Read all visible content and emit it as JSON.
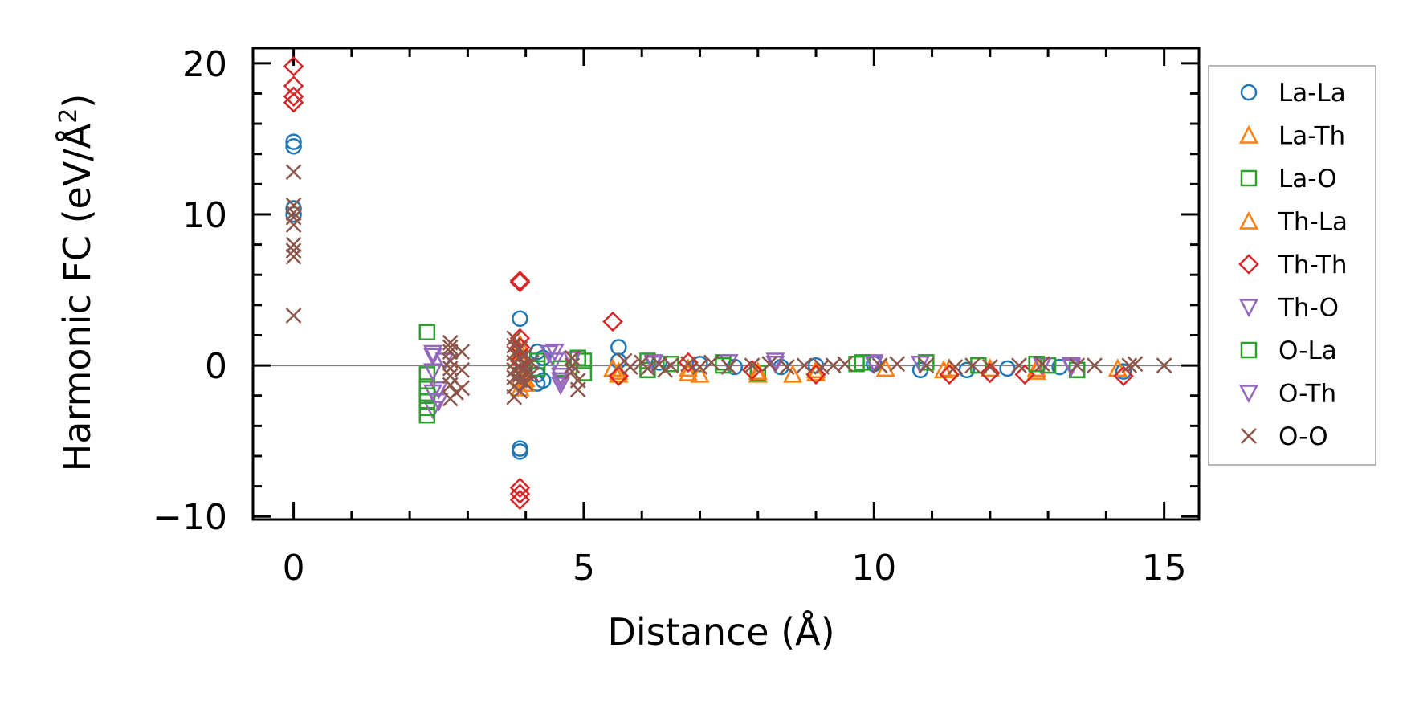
{
  "chart_data": {
    "type": "scatter",
    "xlabel": "Distance (Å)",
    "ylabel": "Harmonic FC (eV/Å²)",
    "ylabel_main": "Harmonic FC (eV/Å",
    "ylabel_sup": "2",
    "ylabel_end": ")",
    "xlim": [
      -0.7,
      15.6
    ],
    "ylim": [
      -10.2,
      21
    ],
    "xticks": [
      0,
      5,
      10,
      15
    ],
    "xtick_labels": [
      "0",
      "5",
      "10",
      "15"
    ],
    "yticks": [
      -10,
      0,
      10,
      20
    ],
    "ytick_labels": [
      "−10",
      "0",
      "10",
      "20"
    ],
    "x_minor_step": 1,
    "y_minor_step": 2,
    "reference_line_y": 0,
    "legend_position": "right, outside",
    "series": [
      {
        "name": "La-La",
        "marker": "circle",
        "color": "#1f77b4",
        "points": [
          [
            0,
            14.8
          ],
          [
            0,
            14.5
          ],
          [
            0,
            10.4
          ],
          [
            0,
            10.0
          ],
          [
            3.9,
            3.1
          ],
          [
            3.9,
            -5.5
          ],
          [
            3.9,
            -5.7
          ],
          [
            3.9,
            0.4
          ],
          [
            3.9,
            -0.5
          ],
          [
            4.2,
            0.9
          ],
          [
            4.2,
            -0.6
          ],
          [
            4.3,
            0.5
          ],
          [
            4.3,
            -1.0
          ],
          [
            4.2,
            -1.2
          ],
          [
            5.6,
            1.2
          ],
          [
            5.6,
            0.3
          ],
          [
            6.3,
            0.2
          ],
          [
            7.0,
            0.1
          ],
          [
            7.6,
            -0.1
          ],
          [
            8.4,
            -0.1
          ],
          [
            9.0,
            0.0
          ],
          [
            10.0,
            0.1
          ],
          [
            10.8,
            -0.3
          ],
          [
            11.6,
            -0.3
          ],
          [
            12.3,
            -0.2
          ],
          [
            13.2,
            -0.1
          ],
          [
            14.3,
            -0.4
          ]
        ]
      },
      {
        "name": "La-Th",
        "marker": "triangle-up",
        "color": "#ff7f0e",
        "points": [
          [
            3.9,
            1.4
          ],
          [
            3.9,
            -1.5
          ],
          [
            3.9,
            0.5
          ],
          [
            4.0,
            -0.9
          ],
          [
            5.6,
            -0.6
          ],
          [
            5.5,
            -0.2
          ],
          [
            6.8,
            -0.5
          ],
          [
            7.0,
            -0.6
          ],
          [
            8.0,
            -0.6
          ],
          [
            8.6,
            -0.6
          ],
          [
            9.0,
            -0.3
          ],
          [
            10.2,
            -0.2
          ],
          [
            11.2,
            -0.3
          ],
          [
            12.0,
            -0.2
          ],
          [
            12.8,
            -0.4
          ],
          [
            14.2,
            -0.2
          ]
        ]
      },
      {
        "name": "La-O",
        "marker": "square",
        "color": "#2ca02c",
        "points": [
          [
            2.3,
            2.2
          ],
          [
            2.3,
            -3.3
          ],
          [
            2.3,
            -2.4
          ],
          [
            2.3,
            -1.4
          ],
          [
            2.3,
            -0.6
          ],
          [
            4.2,
            0.3
          ],
          [
            4.6,
            -0.2
          ],
          [
            5.0,
            0.3
          ],
          [
            5.0,
            -0.5
          ],
          [
            6.1,
            0.3
          ],
          [
            6.5,
            0.1
          ],
          [
            7.4,
            0.2
          ],
          [
            8.0,
            -0.5
          ],
          [
            9.7,
            0.1
          ],
          [
            10.9,
            0.2
          ],
          [
            11.8,
            0.0
          ],
          [
            13.0,
            0.0
          ],
          [
            13.5,
            -0.3
          ]
        ]
      },
      {
        "name": "Th-La",
        "marker": "triangle-up",
        "color": "#ff7f0e",
        "points": [
          [
            3.9,
            1.0
          ],
          [
            3.9,
            -0.8
          ],
          [
            4.0,
            -1.2
          ],
          [
            5.6,
            -0.4
          ],
          [
            6.8,
            -0.2
          ],
          [
            8.0,
            -0.4
          ],
          [
            9.0,
            -0.5
          ],
          [
            11.3,
            -0.2
          ],
          [
            12.8,
            -0.2
          ]
        ]
      },
      {
        "name": "Th-Th",
        "marker": "diamond",
        "color": "#d62728",
        "points": [
          [
            0,
            19.8
          ],
          [
            0,
            18.5
          ],
          [
            0,
            17.8
          ],
          [
            0,
            17.4
          ],
          [
            3.9,
            5.6
          ],
          [
            3.9,
            5.5
          ],
          [
            3.9,
            1.8
          ],
          [
            3.9,
            1.2
          ],
          [
            3.9,
            -8.1
          ],
          [
            3.9,
            -8.5
          ],
          [
            3.9,
            -8.9
          ],
          [
            3.9,
            0.3
          ],
          [
            3.9,
            -0.5
          ],
          [
            5.5,
            2.9
          ],
          [
            5.6,
            -0.7
          ],
          [
            6.8,
            0.2
          ],
          [
            7.9,
            -0.3
          ],
          [
            9.0,
            -0.6
          ],
          [
            11.3,
            -0.6
          ],
          [
            12.0,
            -0.5
          ],
          [
            12.6,
            -0.6
          ],
          [
            14.3,
            -0.7
          ]
        ]
      },
      {
        "name": "Th-O",
        "marker": "triangle-down",
        "color": "#9467bd",
        "points": [
          [
            2.4,
            0.6
          ],
          [
            2.4,
            -0.4
          ],
          [
            2.4,
            -1.8
          ],
          [
            2.4,
            -2.9
          ],
          [
            2.5,
            -1.6
          ],
          [
            2.6,
            0.3
          ],
          [
            4.4,
            0.8
          ],
          [
            4.5,
            0.3
          ],
          [
            4.6,
            -0.7
          ],
          [
            4.6,
            -1.3
          ],
          [
            4.8,
            0.4
          ],
          [
            6.2,
            0.1
          ],
          [
            7.5,
            0.2
          ],
          [
            8.3,
            0.3
          ],
          [
            10.0,
            0.2
          ],
          [
            10.8,
            0.1
          ],
          [
            12.9,
            0.0
          ],
          [
            13.4,
            -0.1
          ]
        ]
      },
      {
        "name": "O-La",
        "marker": "square",
        "color": "#2ca02c",
        "points": [
          [
            2.3,
            -2.0
          ],
          [
            2.3,
            -2.8
          ],
          [
            4.2,
            -0.2
          ],
          [
            4.9,
            0.5
          ],
          [
            6.1,
            -0.3
          ],
          [
            7.4,
            0.0
          ],
          [
            9.8,
            0.2
          ],
          [
            12.8,
            0.1
          ]
        ]
      },
      {
        "name": "O-Th",
        "marker": "triangle-down",
        "color": "#9467bd",
        "points": [
          [
            2.4,
            0.8
          ],
          [
            2.5,
            -2.4
          ],
          [
            4.5,
            0.9
          ],
          [
            4.6,
            -1.0
          ],
          [
            6.2,
            0.2
          ],
          [
            8.3,
            0.1
          ],
          [
            10.0,
            0.1
          ],
          [
            13.4,
            0.0
          ]
        ]
      },
      {
        "name": "O-O",
        "marker": "x",
        "color": "#8c564b",
        "points": [
          [
            0,
            12.8
          ],
          [
            0,
            10.6
          ],
          [
            0,
            10.1
          ],
          [
            0,
            9.8
          ],
          [
            0,
            9.3
          ],
          [
            0,
            8.0
          ],
          [
            0,
            7.6
          ],
          [
            0,
            7.2
          ],
          [
            0,
            3.3
          ],
          [
            2.7,
            1.5
          ],
          [
            2.7,
            1.2
          ],
          [
            2.7,
            0.9
          ],
          [
            2.7,
            0.3
          ],
          [
            2.7,
            -0.2
          ],
          [
            2.7,
            -0.7
          ],
          [
            2.7,
            -1.3
          ],
          [
            2.7,
            -2.2
          ],
          [
            2.8,
            -1.8
          ],
          [
            2.9,
            0.9
          ],
          [
            2.9,
            -0.3
          ],
          [
            2.9,
            -1.5
          ],
          [
            3.8,
            1.8
          ],
          [
            3.8,
            1.3
          ],
          [
            3.8,
            0.8
          ],
          [
            3.8,
            0.2
          ],
          [
            3.8,
            -0.3
          ],
          [
            3.8,
            -0.8
          ],
          [
            3.8,
            -1.4
          ],
          [
            3.8,
            -2.1
          ],
          [
            3.9,
            1.1
          ],
          [
            3.9,
            0.5
          ],
          [
            3.9,
            -0.1
          ],
          [
            3.9,
            -0.6
          ],
          [
            3.9,
            -1.0
          ],
          [
            3.9,
            -1.7
          ],
          [
            4.0,
            0.7
          ],
          [
            4.0,
            0.0
          ],
          [
            4.0,
            -0.5
          ],
          [
            4.0,
            -1.2
          ],
          [
            4.1,
            0.2
          ],
          [
            4.1,
            -0.6
          ],
          [
            4.8,
            0.5
          ],
          [
            4.8,
            0.0
          ],
          [
            4.8,
            -0.4
          ],
          [
            4.9,
            -1.0
          ],
          [
            4.9,
            -1.6
          ],
          [
            5.7,
            0.3
          ],
          [
            5.8,
            -0.1
          ],
          [
            6.0,
            0.2
          ],
          [
            6.1,
            -0.2
          ],
          [
            6.3,
            0.1
          ],
          [
            6.4,
            -0.3
          ],
          [
            6.5,
            0.0
          ],
          [
            6.8,
            0.1
          ],
          [
            7.0,
            -0.1
          ],
          [
            7.2,
            0.2
          ],
          [
            7.5,
            -0.1
          ],
          [
            7.9,
            0.0
          ],
          [
            8.2,
            0.1
          ],
          [
            8.5,
            -0.1
          ],
          [
            8.8,
            0.0
          ],
          [
            9.1,
            -0.1
          ],
          [
            9.3,
            0.0
          ],
          [
            9.5,
            0.1
          ],
          [
            10.1,
            0.0
          ],
          [
            10.4,
            0.1
          ],
          [
            10.9,
            0.0
          ],
          [
            11.4,
            -0.1
          ],
          [
            11.7,
            0.0
          ],
          [
            12.0,
            -0.1
          ],
          [
            12.5,
            0.0
          ],
          [
            12.9,
            0.1
          ],
          [
            13.5,
            0.0
          ],
          [
            13.8,
            0.0
          ],
          [
            14.4,
            0.0
          ],
          [
            14.5,
            0.1
          ],
          [
            15.0,
            0.0
          ]
        ]
      }
    ]
  }
}
